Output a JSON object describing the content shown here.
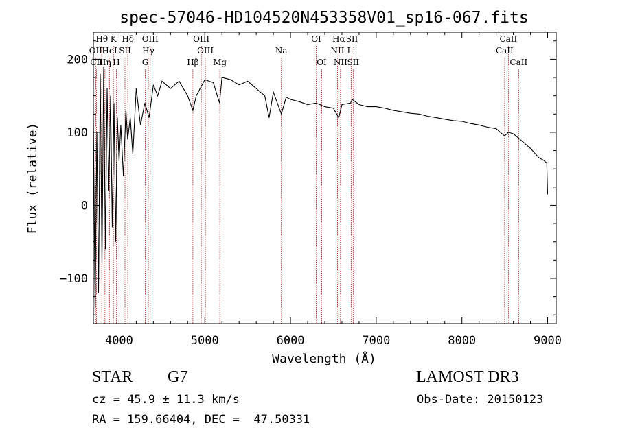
{
  "chart_data": {
    "type": "line",
    "title": "spec-57046-HD104520N453358V01_sp16-067.fits",
    "xlabel": "Wavelength (Å)",
    "ylabel": "Flux (relative)",
    "xlim": [
      3700,
      9100
    ],
    "ylim": [
      -162,
      237
    ],
    "xticks": [
      4000,
      5000,
      6000,
      7000,
      8000,
      9000
    ],
    "xtick_labels": [
      "4000",
      "5000",
      "6000",
      "7000",
      "8000",
      "9000"
    ],
    "yticks": [
      -100,
      0,
      100,
      200
    ],
    "ytick_labels": [
      "−100",
      "0",
      "100",
      "200"
    ],
    "series": [
      {
        "name": "spectrum",
        "x": [
          3700,
          3720,
          3740,
          3760,
          3780,
          3800,
          3820,
          3840,
          3860,
          3880,
          3900,
          3920,
          3940,
          3960,
          3980,
          4000,
          4020,
          4050,
          4080,
          4100,
          4130,
          4160,
          4200,
          4250,
          4300,
          4350,
          4400,
          4450,
          4500,
          4600,
          4700,
          4800,
          4861,
          4900,
          5000,
          5100,
          5172,
          5200,
          5300,
          5400,
          5500,
          5600,
          5700,
          5750,
          5800,
          5893,
          5950,
          6000,
          6100,
          6200,
          6300,
          6400,
          6500,
          6563,
          6600,
          6700,
          6720,
          6800,
          6900,
          7000,
          7100,
          7200,
          7300,
          7400,
          7500,
          7600,
          7700,
          7800,
          7900,
          8000,
          8100,
          8200,
          8300,
          8400,
          8498,
          8542,
          8600,
          8662,
          8700,
          8800,
          8900,
          8950,
          8990,
          9000
        ],
        "values": [
          120,
          -150,
          100,
          -120,
          180,
          -80,
          190,
          -60,
          160,
          20,
          150,
          -30,
          140,
          -50,
          120,
          60,
          110,
          40,
          130,
          90,
          120,
          70,
          160,
          110,
          140,
          120,
          165,
          150,
          170,
          160,
          170,
          150,
          130,
          150,
          172,
          168,
          140,
          175,
          172,
          165,
          170,
          160,
          150,
          120,
          155,
          125,
          148,
          145,
          142,
          138,
          140,
          135,
          133,
          120,
          138,
          140,
          145,
          138,
          135,
          135,
          133,
          130,
          128,
          126,
          125,
          122,
          120,
          118,
          116,
          115,
          112,
          110,
          107,
          105,
          95,
          100,
          98,
          92,
          88,
          78,
          65,
          62,
          58,
          15
        ]
      }
    ],
    "lines": [
      {
        "label": "Hθ",
        "x": 3798,
        "row": 0
      },
      {
        "label": "OII",
        "x": 3727,
        "row": 1
      },
      {
        "label": "CII",
        "x": 3737,
        "row": 2
      },
      {
        "label": "K",
        "x": 3934,
        "row": 0
      },
      {
        "label": "HeI",
        "x": 3889,
        "row": 1
      },
      {
        "label": "Hη",
        "x": 3835,
        "row": 2
      },
      {
        "label": "H",
        "x": 3968,
        "row": 2
      },
      {
        "label": "SII",
        "x": 4069,
        "row": 1
      },
      {
        "label": "Hδ",
        "x": 4102,
        "row": 0
      },
      {
        "label": "OIII",
        "x": 4363,
        "row": 0
      },
      {
        "label": "Hγ",
        "x": 4341,
        "row": 1
      },
      {
        "label": "G",
        "x": 4305,
        "row": 2
      },
      {
        "label": "OIII",
        "x": 4959,
        "row": 0
      },
      {
        "label": "OIII",
        "x": 5007,
        "row": 1
      },
      {
        "label": "Hβ",
        "x": 4861,
        "row": 2
      },
      {
        "label": "Mg",
        "x": 5175,
        "row": 2
      },
      {
        "label": "Na",
        "x": 5893,
        "row": 1
      },
      {
        "label": "OI",
        "x": 6300,
        "row": 0
      },
      {
        "label": "OI",
        "x": 6364,
        "row": 2
      },
      {
        "label": "Hα",
        "x": 6563,
        "row": 0
      },
      {
        "label": "NII",
        "x": 6548,
        "row": 1
      },
      {
        "label": "NII",
        "x": 6583,
        "row": 2
      },
      {
        "label": "SII",
        "x": 6717,
        "row": 0
      },
      {
        "label": "Li",
        "x": 6708,
        "row": 1
      },
      {
        "label": "SII",
        "x": 6731,
        "row": 2
      },
      {
        "label": "CaII",
        "x": 8542,
        "row": 0
      },
      {
        "label": "CaII",
        "x": 8498,
        "row": 1
      },
      {
        "label": "CaII",
        "x": 8662,
        "row": 2
      }
    ]
  },
  "info": {
    "class": "STAR",
    "subclass": "G7",
    "survey": "LAMOST DR3",
    "cz": "cz = 45.9 ± 11.3 km/s",
    "obs_date": "Obs-Date: 20150123",
    "radec": "RA = 159.66404, DEC =  47.50331"
  },
  "colors": {
    "spectrum": "#000000",
    "line_markers": "#b22222",
    "axes": "#000000"
  }
}
